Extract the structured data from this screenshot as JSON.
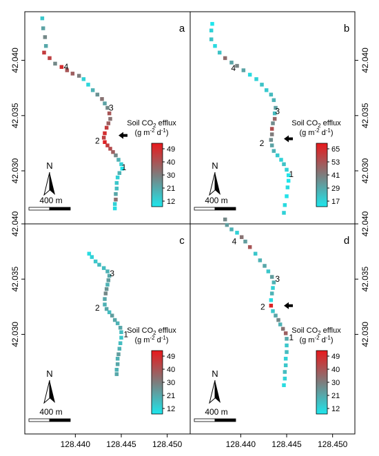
{
  "chart_data": {
    "type": "scatter",
    "x_ticks": [
      "128.440",
      "128.445",
      "128.450"
    ],
    "y_ticks_top": [
      "42.030",
      "42.035",
      "42.040"
    ],
    "y_ticks_bottom": [
      "42.030",
      "42.035",
      "42.040"
    ],
    "scale_bar_label": "400 m",
    "north_label": "N",
    "legend_title_line1": "Soil CO",
    "legend_title_sub": "2",
    "legend_title_tail": " efflux",
    "legend_title_line2": "(g m",
    "legend_title_sup1": "-2",
    "legend_title_mid": " d",
    "legend_title_sup2": "-1",
    "legend_title_end": ")",
    "colors": {
      "low": "#1ee6ec",
      "mid": "#7d7d7d",
      "high": "#e8191c"
    },
    "panels": [
      {
        "label": "a",
        "legend_ticks": [
          "49",
          "40",
          "30",
          "21",
          "12"
        ],
        "vmin": 12,
        "vmax": 52,
        "site_labels": [
          {
            "text": "1",
            "x": 128.4453,
            "y": 42.0303
          },
          {
            "text": "2",
            "x": 128.4424,
            "y": 42.0327
          },
          {
            "text": "3",
            "x": 128.4439,
            "y": 42.0357
          },
          {
            "text": "4",
            "x": 128.439,
            "y": 42.0394
          }
        ],
        "arrow": {
          "x": 128.4447,
          "y": 42.0332
        },
        "points": [
          [
            128.4364,
            42.0438,
            18
          ],
          [
            128.4365,
            42.0429,
            25
          ],
          [
            128.4367,
            42.0421,
            30
          ],
          [
            128.4368,
            42.0413,
            24
          ],
          [
            128.4366,
            42.0407,
            45
          ],
          [
            128.4372,
            42.0402,
            44
          ],
          [
            128.4378,
            42.0397,
            30
          ],
          [
            128.4385,
            42.0394,
            48
          ],
          [
            128.4391,
            42.0391,
            40
          ],
          [
            128.4397,
            42.0388,
            38
          ],
          [
            128.4404,
            42.0386,
            32
          ],
          [
            128.4409,
            42.0383,
            16
          ],
          [
            128.4414,
            42.0378,
            15
          ],
          [
            128.4419,
            42.0373,
            22
          ],
          [
            128.4424,
            42.0369,
            28
          ],
          [
            128.4429,
            42.0365,
            34
          ],
          [
            128.4432,
            42.0361,
            25
          ],
          [
            128.4435,
            42.0357,
            30
          ],
          [
            128.4437,
            42.0352,
            40
          ],
          [
            128.4438,
            42.0347,
            34
          ],
          [
            128.4436,
            42.0343,
            38
          ],
          [
            128.4434,
            42.0339,
            45
          ],
          [
            128.4432,
            42.0334,
            48
          ],
          [
            128.4431,
            42.033,
            44
          ],
          [
            128.4432,
            42.0326,
            50
          ],
          [
            128.4435,
            42.0323,
            45
          ],
          [
            128.4438,
            42.032,
            42
          ],
          [
            128.4441,
            42.0317,
            38
          ],
          [
            128.4444,
            42.0314,
            30
          ],
          [
            128.4447,
            42.031,
            22
          ],
          [
            128.445,
            42.0306,
            16
          ],
          [
            128.4451,
            42.0302,
            12
          ],
          [
            128.4448,
            42.0298,
            22
          ],
          [
            128.4446,
            42.0294,
            16
          ],
          [
            128.4445,
            42.0289,
            18
          ],
          [
            128.4445,
            42.0284,
            20
          ],
          [
            128.4444,
            42.0279,
            24
          ],
          [
            128.4444,
            42.0274,
            35
          ],
          [
            128.4443,
            42.027,
            16
          ],
          [
            128.4443,
            42.0266,
            14
          ]
        ]
      },
      {
        "label": "b",
        "legend_ticks": [
          "65",
          "53",
          "41",
          "29",
          "17"
        ],
        "vmin": 17,
        "vmax": 70,
        "site_labels": [
          {
            "text": "1",
            "x": 128.4455,
            "y": 42.0297
          },
          {
            "text": "2",
            "x": 128.4423,
            "y": 42.0325
          },
          {
            "text": "3",
            "x": 128.444,
            "y": 42.0354
          },
          {
            "text": "4",
            "x": 128.4392,
            "y": 42.0393
          }
        ],
        "arrow": {
          "x": 128.4447,
          "y": 42.0329
        },
        "points": [
          [
            128.4369,
            42.0433,
            17
          ],
          [
            128.4368,
            42.0427,
            22
          ],
          [
            128.4368,
            42.0419,
            26
          ],
          [
            128.4372,
            42.0413,
            20
          ],
          [
            128.4377,
            42.0407,
            26
          ],
          [
            128.4383,
            42.0402,
            48
          ],
          [
            128.439,
            42.0398,
            34
          ],
          [
            128.4396,
            42.0395,
            42
          ],
          [
            128.4403,
            42.0391,
            34
          ],
          [
            128.441,
            42.0387,
            20
          ],
          [
            128.4417,
            42.0383,
            22
          ],
          [
            128.4423,
            42.0378,
            26
          ],
          [
            128.4428,
            42.0373,
            24
          ],
          [
            128.4433,
            42.0369,
            28
          ],
          [
            128.4436,
            42.0364,
            30
          ],
          [
            128.4438,
            42.0357,
            35
          ],
          [
            128.4437,
            42.0352,
            28
          ],
          [
            128.4437,
            42.0347,
            50
          ],
          [
            128.4435,
            42.0343,
            40
          ],
          [
            128.4434,
            42.0338,
            56
          ],
          [
            128.4434,
            42.0333,
            44
          ],
          [
            128.4433,
            42.0328,
            40
          ],
          [
            128.4434,
            42.0323,
            34
          ],
          [
            128.4436,
            42.0318,
            30
          ],
          [
            128.444,
            42.0314,
            24
          ],
          [
            128.4444,
            42.031,
            22
          ],
          [
            128.4447,
            42.0306,
            26
          ],
          [
            128.445,
            42.0301,
            22
          ],
          [
            128.4452,
            42.0296,
            18
          ],
          [
            128.4452,
            42.0291,
            17
          ],
          [
            128.4451,
            42.0285,
            20
          ],
          [
            128.445,
            42.0277,
            18
          ],
          [
            128.4448,
            42.0269,
            20
          ],
          [
            128.4447,
            42.0262,
            22
          ]
        ]
      },
      {
        "label": "c",
        "legend_ticks": [
          "49",
          "40",
          "30",
          "21",
          "12"
        ],
        "vmin": 12,
        "vmax": 52,
        "site_labels": [
          {
            "text": "1",
            "x": 128.4455,
            "y": 42.03
          },
          {
            "text": "2",
            "x": 128.4424,
            "y": 42.0324
          },
          {
            "text": "3",
            "x": 128.444,
            "y": 42.0355
          }
        ],
        "points": [
          [
            128.4415,
            42.0373,
            14
          ],
          [
            128.4418,
            42.037,
            16
          ],
          [
            128.4422,
            42.0366,
            18
          ],
          [
            128.4426,
            42.0363,
            20
          ],
          [
            128.4431,
            42.036,
            20
          ],
          [
            128.4435,
            42.0357,
            22
          ],
          [
            128.4437,
            42.0353,
            24
          ],
          [
            128.4436,
            42.0349,
            26
          ],
          [
            128.4435,
            42.0345,
            22
          ],
          [
            128.4434,
            42.0341,
            28
          ],
          [
            128.4433,
            42.0337,
            30
          ],
          [
            128.4432,
            42.0332,
            24
          ],
          [
            128.4432,
            42.0327,
            22
          ],
          [
            128.4434,
            42.0323,
            24
          ],
          [
            128.4437,
            42.032,
            20
          ],
          [
            128.444,
            42.0317,
            26
          ],
          [
            128.4443,
            42.0313,
            24
          ],
          [
            128.4446,
            42.031,
            22
          ],
          [
            128.4449,
            42.0306,
            24
          ],
          [
            128.445,
            42.0302,
            20
          ],
          [
            128.445,
            42.0297,
            18
          ],
          [
            128.4449,
            42.0292,
            20
          ],
          [
            128.4448,
            42.0287,
            22
          ],
          [
            128.4447,
            42.0282,
            26
          ],
          [
            128.4446,
            42.0278,
            22
          ],
          [
            128.4446,
            42.0273,
            24
          ],
          [
            128.4445,
            42.0268,
            22
          ],
          [
            128.4445,
            42.0264,
            24
          ]
        ]
      },
      {
        "label": "d",
        "legend_ticks": [
          "49",
          "40",
          "30",
          "21",
          "12"
        ],
        "vmin": 12,
        "vmax": 52,
        "site_labels": [
          {
            "text": "1",
            "x": 128.4455,
            "y": 42.0297
          },
          {
            "text": "2",
            "x": 128.4424,
            "y": 42.0325
          },
          {
            "text": "3",
            "x": 128.444,
            "y": 42.035
          },
          {
            "text": "4",
            "x": 128.4393,
            "y": 42.0384
          }
        ],
        "arrow": {
          "x": 128.4447,
          "y": 42.0326
        },
        "points": [
          [
            128.4383,
            42.0404,
            30
          ],
          [
            128.4385,
            42.0399,
            26
          ],
          [
            128.439,
            42.0395,
            22
          ],
          [
            128.4396,
            42.0392,
            16
          ],
          [
            128.4401,
            42.0388,
            34
          ],
          [
            128.4405,
            42.0384,
            26
          ],
          [
            128.441,
            42.0379,
            40
          ],
          [
            128.4416,
            42.0373,
            18
          ],
          [
            128.4421,
            42.0367,
            22
          ],
          [
            128.4426,
            42.0362,
            24
          ],
          [
            128.443,
            42.0357,
            18
          ],
          [
            128.4434,
            42.0352,
            26
          ],
          [
            128.4436,
            42.0347,
            22
          ],
          [
            128.4435,
            42.0342,
            16
          ],
          [
            128.4434,
            42.0337,
            22
          ],
          [
            128.4433,
            42.0331,
            14
          ],
          [
            128.4433,
            42.0326,
            50
          ],
          [
            128.4435,
            42.0321,
            18
          ],
          [
            128.4438,
            42.0317,
            24
          ],
          [
            128.4441,
            42.0313,
            30
          ],
          [
            128.4443,
            42.0309,
            22
          ],
          [
            128.4446,
            42.0305,
            34
          ],
          [
            128.4449,
            42.0301,
            38
          ],
          [
            128.445,
            42.0296,
            24
          ],
          [
            128.445,
            42.029,
            18
          ],
          [
            128.445,
            42.0284,
            20
          ],
          [
            128.4449,
            42.0278,
            16
          ],
          [
            128.4449,
            42.0272,
            18
          ],
          [
            128.4448,
            42.0266,
            20
          ],
          [
            128.4448,
            42.026,
            16
          ],
          [
            128.4447,
            42.0254,
            14
          ]
        ]
      }
    ]
  }
}
